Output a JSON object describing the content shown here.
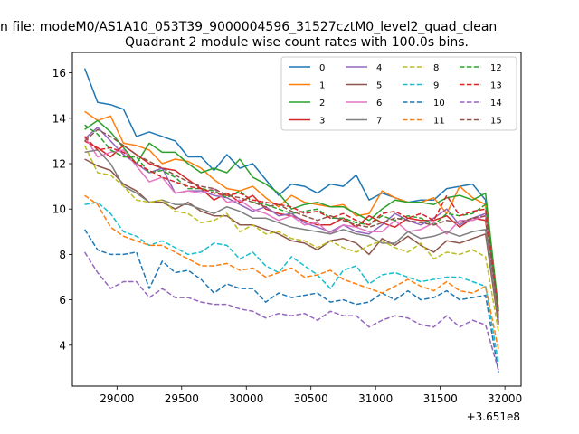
{
  "chart_data": {
    "type": "line",
    "suptitle": "n file: modeM0/AS1A10_053T39_9000004596_31527cztM0_level2_quad_clean",
    "title": "Quadrant 2 module wise count rates with 100.0s bins.",
    "xlabel": "",
    "ylabel": "",
    "x_offset_label": "+3.651e8",
    "xlim": [
      28655,
      32125
    ],
    "ylim": [
      2.2,
      16.9
    ],
    "xticks": [
      29000,
      29500,
      30000,
      30500,
      31000,
      31500,
      32000
    ],
    "xtick_labels": [
      "29000",
      "29500",
      "30000",
      "30500",
      "31000",
      "31500",
      "32000"
    ],
    "yticks": [
      4,
      6,
      8,
      10,
      12,
      14,
      16
    ],
    "ytick_labels": [
      "4",
      "6",
      "8",
      "10",
      "12",
      "14",
      "16"
    ],
    "grid": false,
    "legend": {
      "placement": "top-right",
      "columns": 4
    },
    "x": [
      28750,
      28850,
      28950,
      29050,
      29150,
      29250,
      29350,
      29450,
      29550,
      29650,
      29750,
      29850,
      29950,
      30050,
      30150,
      30250,
      30350,
      30450,
      30550,
      30650,
      30750,
      30850,
      30950,
      31050,
      31150,
      31250,
      31350,
      31450,
      31550,
      31650,
      31750,
      31850,
      31950
    ],
    "series": [
      {
        "name": "0",
        "color": "#1f77b4",
        "dash": "solid",
        "values": [
          16.2,
          14.7,
          14.6,
          14.4,
          13.2,
          13.4,
          13.2,
          13.0,
          12.3,
          12.3,
          11.7,
          12.4,
          11.8,
          12.0,
          11.3,
          10.6,
          11.1,
          11.0,
          10.7,
          11.1,
          11.0,
          11.5,
          10.4,
          10.7,
          10.5,
          10.3,
          10.4,
          10.4,
          10.9,
          11.0,
          11.1,
          10.4,
          5.0
        ]
      },
      {
        "name": "1",
        "color": "#ff7f0e",
        "dash": "solid",
        "values": [
          14.3,
          13.9,
          14.1,
          12.9,
          12.8,
          12.6,
          12.0,
          12.2,
          12.1,
          11.8,
          11.3,
          10.9,
          10.8,
          11.0,
          10.5,
          10.1,
          10.6,
          10.3,
          10.2,
          10.1,
          10.2,
          9.7,
          9.8,
          10.8,
          10.5,
          10.3,
          10.3,
          10.5,
          9.8,
          11.0,
          10.5,
          10.2,
          5.5
        ]
      },
      {
        "name": "2",
        "color": "#2ca02c",
        "dash": "solid",
        "values": [
          13.5,
          13.9,
          13.4,
          12.7,
          12.0,
          12.9,
          12.5,
          12.5,
          12.0,
          11.6,
          11.8,
          11.6,
          12.2,
          11.4,
          11.1,
          10.7,
          10.0,
          10.2,
          10.3,
          10.1,
          10.1,
          9.8,
          9.5,
          10.0,
          10.4,
          10.3,
          10.3,
          10.2,
          10.5,
          10.6,
          10.4,
          10.7,
          5.6
        ]
      },
      {
        "name": "3",
        "color": "#d62728",
        "dash": "solid",
        "values": [
          13.0,
          12.7,
          12.3,
          12.8,
          12.4,
          12.0,
          11.8,
          11.7,
          11.3,
          10.9,
          10.4,
          10.7,
          10.3,
          10.6,
          10.0,
          9.8,
          9.7,
          9.5,
          9.3,
          9.3,
          9.6,
          9.2,
          9.7,
          9.4,
          9.2,
          9.6,
          9.5,
          9.5,
          9.7,
          9.2,
          9.6,
          9.5,
          5.0
        ]
      },
      {
        "name": "4",
        "color": "#9467bd",
        "dash": "solid",
        "values": [
          13.1,
          13.6,
          13.0,
          12.4,
          12.0,
          11.6,
          11.8,
          10.7,
          10.8,
          10.8,
          10.6,
          10.5,
          10.2,
          9.9,
          10.1,
          9.7,
          9.8,
          9.4,
          9.2,
          9.0,
          9.3,
          9.0,
          8.9,
          9.3,
          9.8,
          9.5,
          9.3,
          9.6,
          10.0,
          9.3,
          9.6,
          9.8,
          5.2
        ]
      },
      {
        "name": "5",
        "color": "#8c564b",
        "dash": "solid",
        "values": [
          12.2,
          11.9,
          11.7,
          11.1,
          10.8,
          10.3,
          10.3,
          10.0,
          10.3,
          9.9,
          9.7,
          9.7,
          9.3,
          9.3,
          9.1,
          8.9,
          8.6,
          8.5,
          8.2,
          8.6,
          8.7,
          8.5,
          8.0,
          8.7,
          8.4,
          8.8,
          8.4,
          8.1,
          8.6,
          8.5,
          8.7,
          8.9,
          4.9
        ]
      },
      {
        "name": "6",
        "color": "#e377c2",
        "dash": "solid",
        "values": [
          13.2,
          12.3,
          12.5,
          12.6,
          11.9,
          11.2,
          11.4,
          10.7,
          10.8,
          10.7,
          10.9,
          10.3,
          10.4,
          10.0,
          9.8,
          9.5,
          9.7,
          9.3,
          9.4,
          8.9,
          9.3,
          9.2,
          9.0,
          9.0,
          9.5,
          9.0,
          9.1,
          9.4,
          8.9,
          9.5,
          9.5,
          9.7,
          5.3
        ]
      },
      {
        "name": "7",
        "color": "#7f7f7f",
        "dash": "solid",
        "values": [
          12.5,
          12.6,
          12.0,
          11.0,
          10.7,
          10.3,
          10.4,
          10.2,
          10.2,
          10.0,
          9.8,
          10.1,
          9.9,
          9.6,
          9.6,
          9.4,
          9.2,
          9.1,
          9.0,
          8.9,
          9.1,
          8.9,
          8.8,
          8.5,
          8.5,
          9.0,
          8.7,
          8.8,
          9.0,
          8.8,
          9.0,
          9.1,
          5.1
        ]
      },
      {
        "name": "8",
        "color": "#bcbd22",
        "dash": "dashed",
        "values": [
          12.8,
          11.6,
          11.5,
          11.0,
          10.4,
          10.3,
          10.4,
          9.9,
          9.8,
          9.4,
          9.5,
          9.8,
          9.0,
          9.3,
          8.9,
          9.0,
          8.7,
          8.6,
          8.3,
          8.6,
          8.3,
          8.1,
          8.4,
          8.6,
          8.3,
          8.1,
          8.5,
          7.8,
          8.1,
          8.0,
          8.2,
          7.9,
          4.6
        ]
      },
      {
        "name": "9",
        "color": "#17becf",
        "dash": "dashed",
        "values": [
          10.2,
          10.3,
          9.8,
          9.0,
          8.8,
          8.4,
          8.6,
          8.3,
          8.0,
          8.1,
          8.5,
          8.4,
          7.8,
          8.1,
          7.5,
          7.2,
          7.9,
          7.5,
          7.1,
          6.5,
          7.3,
          7.5,
          6.7,
          7.1,
          7.2,
          7.0,
          6.8,
          6.9,
          7.0,
          7.0,
          6.8,
          6.6,
          3.2
        ]
      },
      {
        "name": "10",
        "color": "#1f77b4",
        "dash": "dashed",
        "values": [
          9.1,
          8.2,
          8.0,
          8.0,
          8.1,
          6.5,
          7.7,
          7.2,
          7.3,
          6.9,
          6.3,
          6.7,
          6.5,
          6.5,
          5.9,
          6.3,
          6.1,
          6.2,
          6.3,
          5.9,
          6.0,
          5.8,
          5.9,
          6.3,
          6.0,
          6.4,
          6.0,
          6.1,
          6.4,
          6.0,
          6.1,
          6.2,
          2.8
        ]
      },
      {
        "name": "11",
        "color": "#ff7f0e",
        "dash": "dashed",
        "values": [
          10.6,
          10.2,
          9.2,
          8.8,
          8.6,
          8.4,
          8.4,
          8.1,
          7.8,
          7.5,
          7.5,
          7.6,
          7.3,
          7.4,
          7.0,
          7.2,
          7.4,
          7.0,
          7.1,
          7.3,
          6.9,
          6.7,
          6.5,
          6.3,
          6.6,
          6.9,
          6.6,
          6.4,
          6.8,
          6.4,
          6.3,
          6.6,
          3.8
        ]
      },
      {
        "name": "12",
        "color": "#2ca02c",
        "dash": "dashed",
        "values": [
          13.7,
          13.3,
          12.6,
          12.3,
          12.3,
          11.6,
          11.7,
          11.4,
          10.9,
          10.9,
          10.8,
          10.5,
          10.8,
          10.3,
          10.2,
          10.0,
          9.8,
          9.9,
          10.0,
          9.6,
          9.6,
          9.4,
          9.3,
          9.7,
          9.5,
          9.7,
          9.6,
          9.3,
          9.8,
          9.7,
          9.8,
          10.2,
          5.4
        ]
      },
      {
        "name": "13",
        "color": "#d62728",
        "dash": "dashed",
        "values": [
          13.2,
          12.6,
          12.7,
          12.5,
          12.0,
          11.7,
          11.4,
          11.2,
          11.0,
          10.9,
          10.7,
          10.6,
          10.7,
          10.4,
          10.3,
          10.2,
          10.1,
          9.8,
          9.9,
          9.6,
          9.8,
          9.5,
          9.3,
          9.8,
          9.9,
          9.6,
          9.8,
          9.5,
          10.6,
          9.7,
          9.9,
          10.0,
          5.5
        ]
      },
      {
        "name": "14",
        "color": "#9467bd",
        "dash": "dashed",
        "values": [
          8.1,
          7.2,
          6.5,
          6.8,
          6.8,
          6.1,
          6.5,
          6.1,
          6.1,
          5.9,
          5.8,
          5.8,
          5.6,
          5.5,
          5.2,
          5.4,
          5.3,
          5.4,
          5.1,
          5.5,
          5.3,
          5.3,
          4.8,
          5.1,
          5.3,
          5.2,
          4.9,
          4.8,
          5.3,
          4.8,
          5.1,
          4.9,
          2.9
        ]
      },
      {
        "name": "15",
        "color": "#8c564b",
        "dash": "dashed",
        "values": [
          13.0,
          13.5,
          13.2,
          12.8,
          12.4,
          12.1,
          11.8,
          11.5,
          11.2,
          11.0,
          10.9,
          10.6,
          10.5,
          10.3,
          10.1,
          10.2,
          9.9,
          9.7,
          9.5,
          9.7,
          9.5,
          9.3,
          9.2,
          9.4,
          9.6,
          9.5,
          9.4,
          9.3,
          9.5,
          9.4,
          9.6,
          9.7,
          5.3
        ]
      }
    ]
  }
}
